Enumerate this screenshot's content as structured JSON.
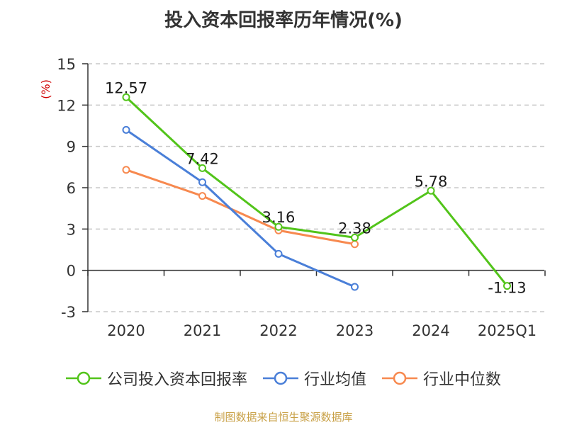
{
  "chart_data": {
    "type": "line",
    "title": "投入资本回报率历年情况(%)",
    "ylabel": "(%)",
    "xlabel": "",
    "categories": [
      "2020",
      "2021",
      "2022",
      "2023",
      "2024",
      "2025Q1"
    ],
    "yticks": [
      -3,
      0,
      3,
      6,
      9,
      12,
      15
    ],
    "ylim": [
      -3,
      15
    ],
    "grid": true,
    "legend_position": "bottom",
    "series": [
      {
        "name": "公司投入资本回报率",
        "color": "#52c41a",
        "values": [
          12.57,
          7.42,
          3.16,
          2.38,
          5.78,
          -1.13
        ],
        "labels": [
          "12.57",
          "7.42",
          "3.16",
          "2.38",
          "5.78",
          "-1.13"
        ]
      },
      {
        "name": "行业均值",
        "color": "#4a7fd8",
        "values": [
          10.2,
          6.4,
          1.2,
          -1.2,
          null,
          null
        ]
      },
      {
        "name": "行业中位数",
        "color": "#f7894f",
        "values": [
          7.3,
          5.4,
          2.9,
          1.9,
          null,
          null
        ]
      }
    ]
  },
  "source": "制图数据来自恒生聚源数据库"
}
